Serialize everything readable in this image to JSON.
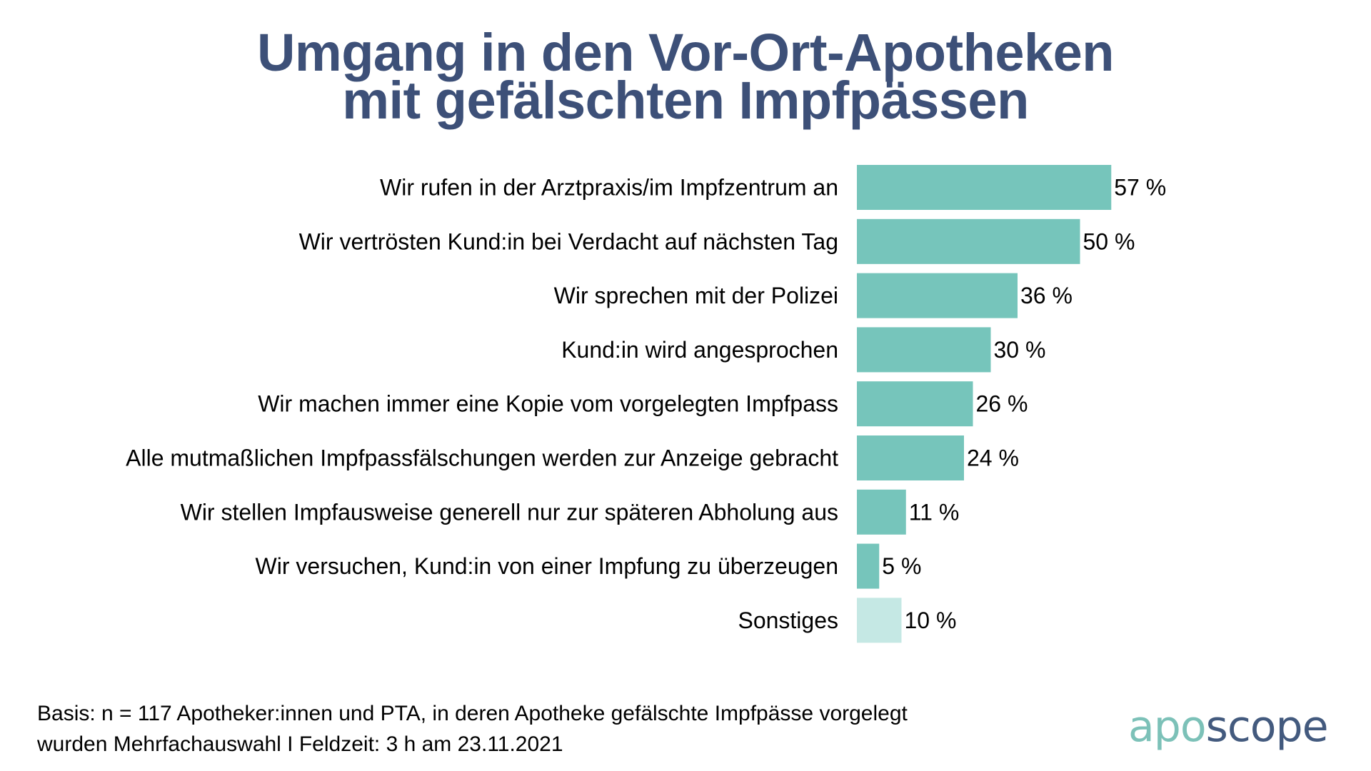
{
  "chart_data": {
    "type": "bar",
    "orientation": "horizontal",
    "title": "Umgang in den Vor-Ort-Apotheken mit gefälschten Impfpässen",
    "title_lines": [
      "Umgang in den Vor-Ort-Apotheken",
      "mit gefälschten Impfpässen"
    ],
    "categories": [
      "Wir rufen in der Arztpraxis/im Impfzentrum an",
      "Wir vertrösten Kund:in bei Verdacht auf nächsten Tag",
      "Wir sprechen mit der Polizei",
      "Kund:in wird angesprochen",
      "Wir machen immer eine Kopie vom vorgelegten Impfpass",
      "Alle mutmaßlichen Impfpassfälschungen werden zur Anzeige gebracht",
      "Wir stellen Impfausweise generell nur zur späteren Abholung aus",
      "Wir versuchen, Kund:in von einer Impfung zu überzeugen",
      "Sonstiges"
    ],
    "values": [
      57,
      50,
      36,
      30,
      26,
      24,
      11,
      5,
      10
    ],
    "value_labels": [
      "57 %",
      "50 %",
      "36 %",
      "30 %",
      "26 %",
      "24 %",
      "11 %",
      "5 %",
      "10 %"
    ],
    "unit": "%",
    "highlight": [
      false,
      false,
      false,
      false,
      false,
      false,
      false,
      false,
      true
    ],
    "xlabel": "",
    "ylabel": "",
    "xlim": [
      0,
      100
    ],
    "grid": false,
    "legend": "none",
    "colors": {
      "bar": "#76c5bb",
      "bar_other": "#c5e8e4",
      "title": "#3d5078"
    }
  },
  "footer": {
    "line1": "Basis: n = 117 Apotheker:innen und PTA, in deren Apotheke gefälschte Impfpässe vorgelegt",
    "line2": "wurden Mehrfachauswahl I Feldzeit: 3 h am 23.11.2021"
  },
  "logo": {
    "part1": "apo",
    "part2": "scope",
    "color1": "#7cc1b8",
    "color2": "#435a7e"
  }
}
